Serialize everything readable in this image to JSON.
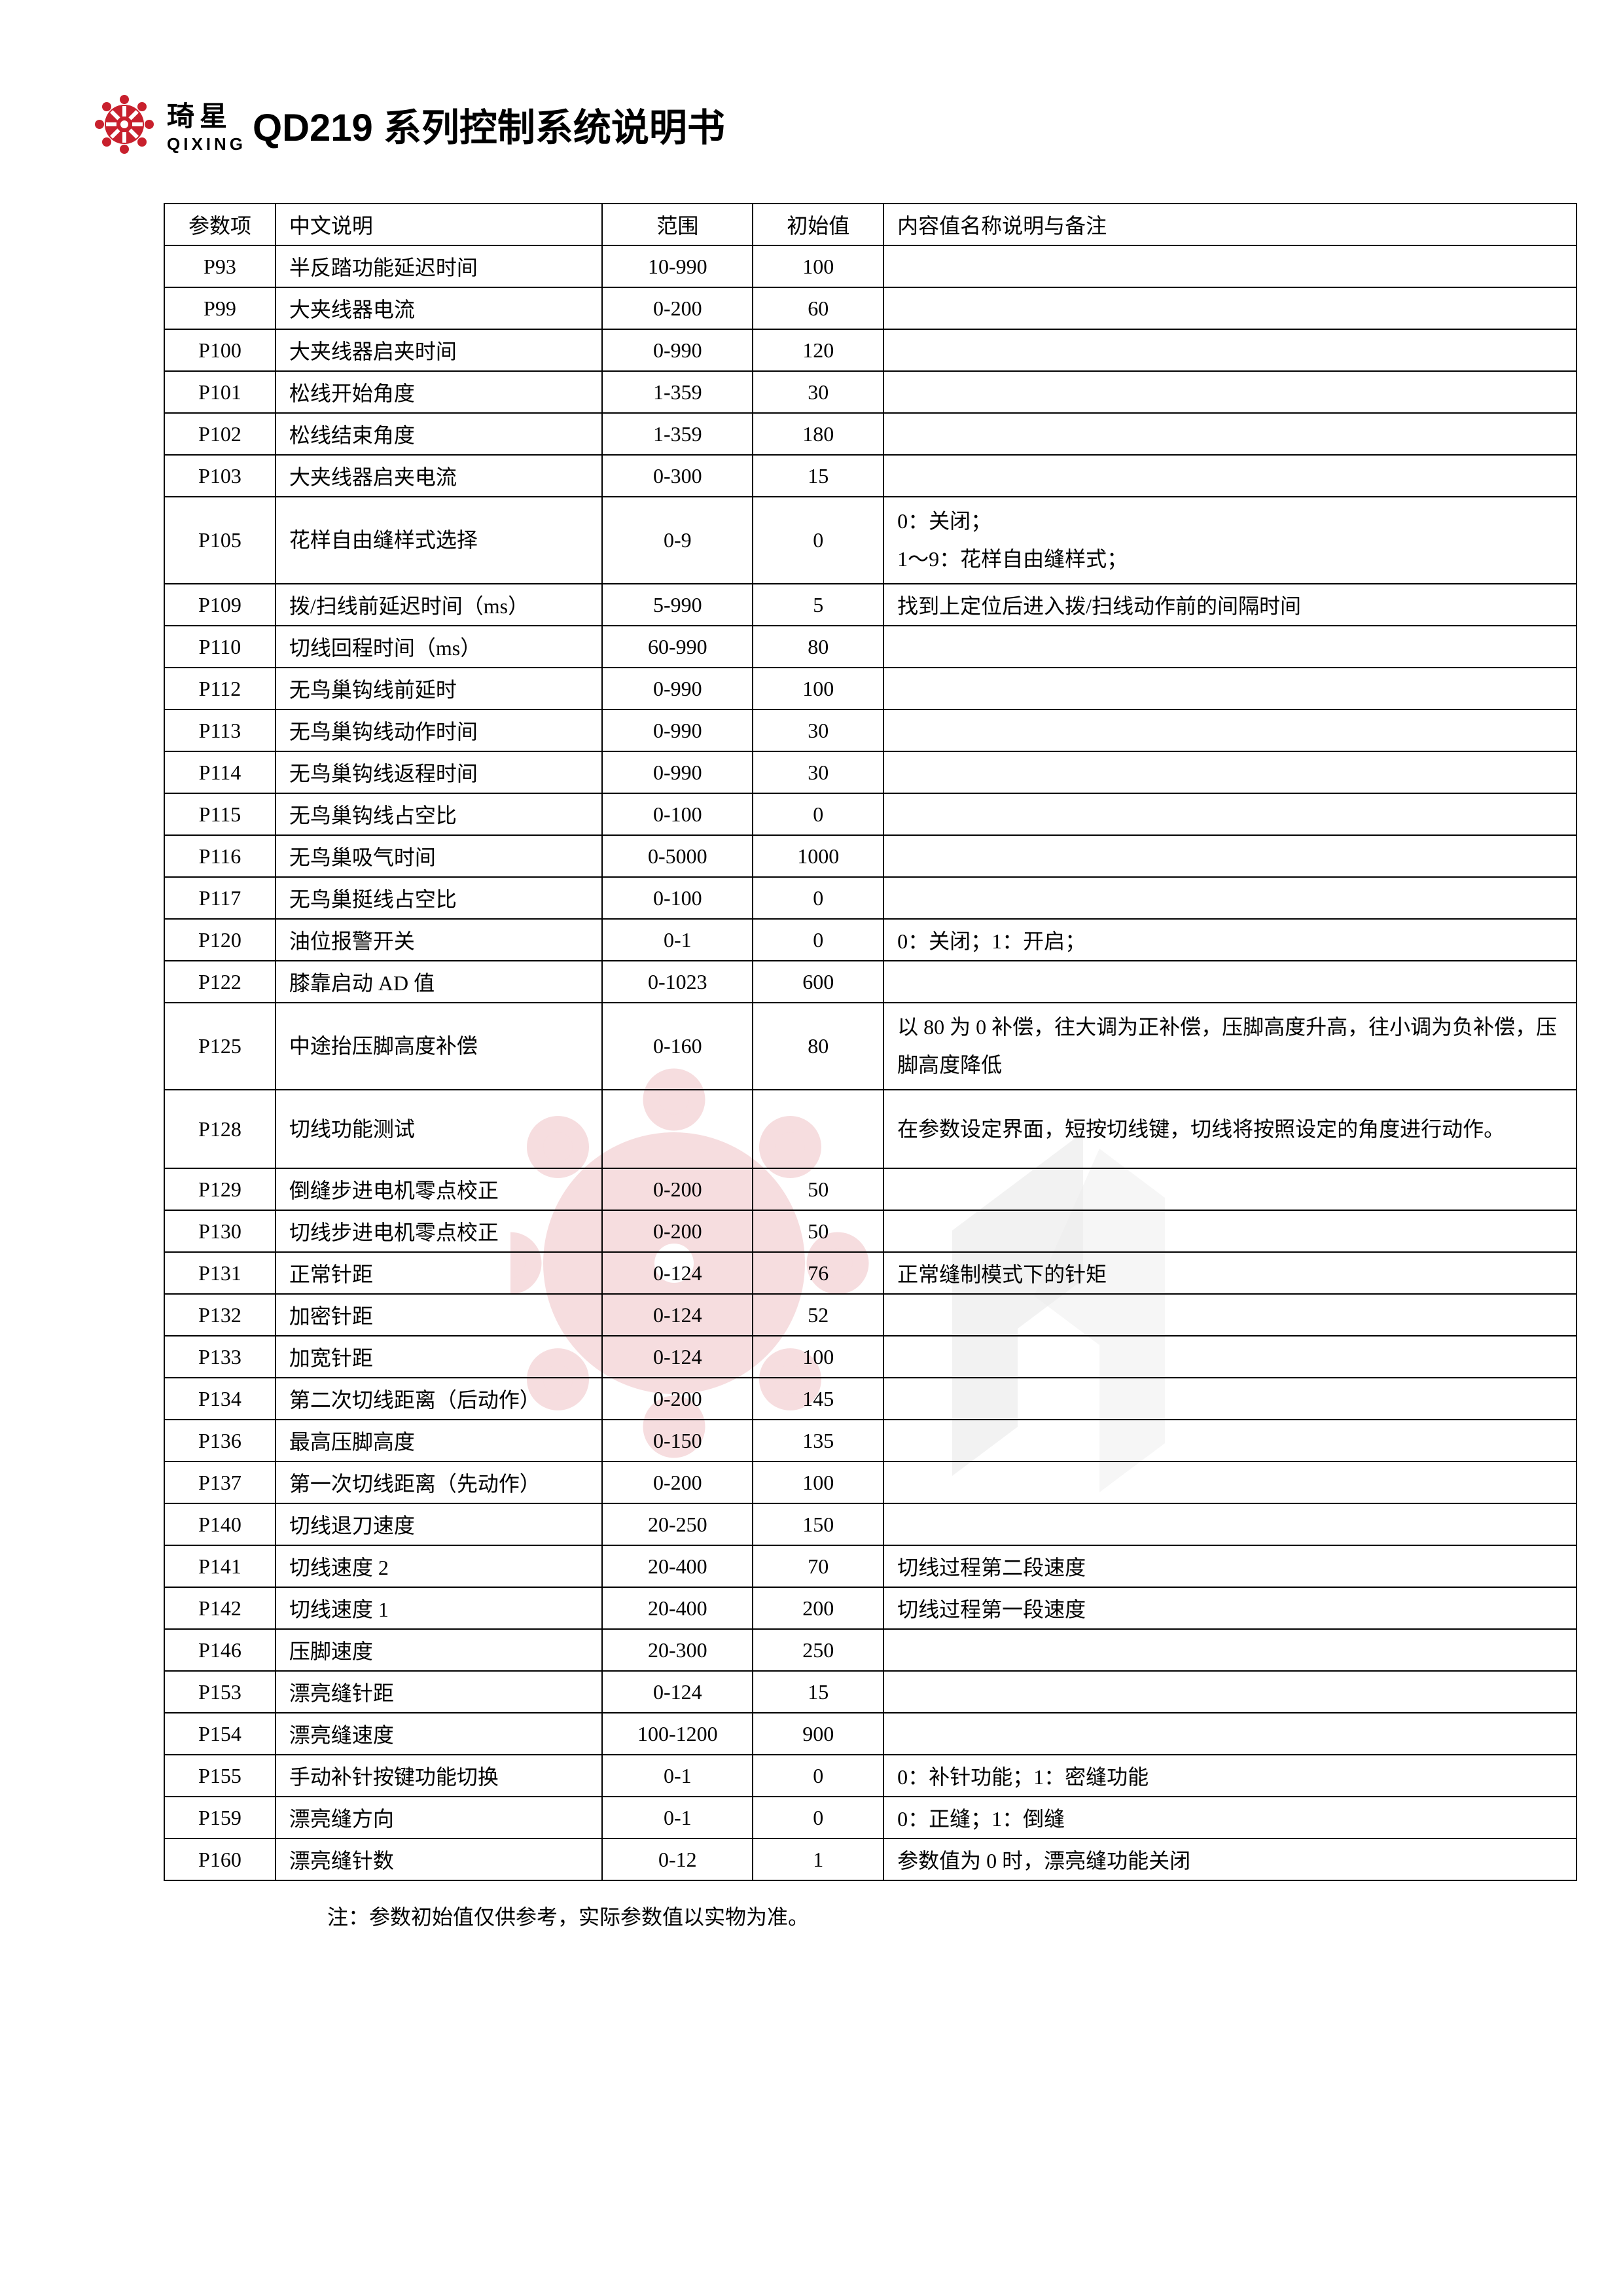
{
  "header": {
    "brand_cn": "琦星",
    "brand_en": "QIXING",
    "title": "QD219 系列控制系统说明书",
    "logo_color": "#c8202d"
  },
  "table": {
    "headers": {
      "param": "参数项",
      "desc": "中文说明",
      "range": "范围",
      "init": "初始值",
      "note": "内容值名称说明与备注"
    },
    "rows": [
      {
        "param": "P93",
        "desc": "半反踏功能延迟时间",
        "range": "10-990",
        "init": "100",
        "note": ""
      },
      {
        "param": "P99",
        "desc": "大夹线器电流",
        "range": "0-200",
        "init": "60",
        "note": ""
      },
      {
        "param": "P100",
        "desc": "大夹线器启夹时间",
        "range": "0-990",
        "init": "120",
        "note": ""
      },
      {
        "param": "P101",
        "desc": "松线开始角度",
        "range": "1-359",
        "init": "30",
        "note": ""
      },
      {
        "param": "P102",
        "desc": "松线结束角度",
        "range": "1-359",
        "init": "180",
        "note": ""
      },
      {
        "param": "P103",
        "desc": "大夹线器启夹电流",
        "range": "0-300",
        "init": "15",
        "note": ""
      },
      {
        "param": "P105",
        "desc": "花样自由缝样式选择",
        "range": "0-9",
        "init": "0",
        "note": "0：关闭；\n1～9：花样自由缝样式；",
        "tall": true
      },
      {
        "param": "P109",
        "desc": "拨/扫线前延迟时间（ms）",
        "range": "5-990",
        "init": "5",
        "note": "找到上定位后进入拨/扫线动作前的间隔时间"
      },
      {
        "param": "P110",
        "desc": "切线回程时间（ms）",
        "range": "60-990",
        "init": "80",
        "note": ""
      },
      {
        "param": "P112",
        "desc": "无鸟巢钩线前延时",
        "range": "0-990",
        "init": "100",
        "note": ""
      },
      {
        "param": "P113",
        "desc": "无鸟巢钩线动作时间",
        "range": "0-990",
        "init": "30",
        "note": ""
      },
      {
        "param": "P114",
        "desc": "无鸟巢钩线返程时间",
        "range": "0-990",
        "init": "30",
        "note": ""
      },
      {
        "param": "P115",
        "desc": "无鸟巢钩线占空比",
        "range": "0-100",
        "init": "0",
        "note": ""
      },
      {
        "param": "P116",
        "desc": "无鸟巢吸气时间",
        "range": "0-5000",
        "init": "1000",
        "note": ""
      },
      {
        "param": "P117",
        "desc": "无鸟巢挺线占空比",
        "range": "0-100",
        "init": "0",
        "note": ""
      },
      {
        "param": "P120",
        "desc": "油位报警开关",
        "range": "0-1",
        "init": "0",
        "note": "0：关闭；1：开启；"
      },
      {
        "param": "P122",
        "desc": "膝靠启动 AD 值",
        "range": "0-1023",
        "init": "600",
        "note": ""
      },
      {
        "param": "P125",
        "desc": "中途抬压脚高度补偿",
        "range": "0-160",
        "init": "80",
        "note": "以 80 为 0 补偿，往大调为正补偿，压脚高度升高，往小调为负补偿，压脚高度降低",
        "tall": true
      },
      {
        "param": "P128",
        "desc": "切线功能测试",
        "range": "",
        "init": "",
        "note": "在参数设定界面，短按切线键，切线将按照设定的角度进行动作。",
        "tall": true
      },
      {
        "param": "P129",
        "desc": "倒缝步进电机零点校正",
        "range": "0-200",
        "init": "50",
        "note": ""
      },
      {
        "param": "P130",
        "desc": "切线步进电机零点校正",
        "range": "0-200",
        "init": "50",
        "note": ""
      },
      {
        "param": "P131",
        "desc": "正常针距",
        "range": "0-124",
        "init": "76",
        "note": "正常缝制模式下的针矩"
      },
      {
        "param": "P132",
        "desc": "加密针距",
        "range": "0-124",
        "init": "52",
        "note": ""
      },
      {
        "param": "P133",
        "desc": "加宽针距",
        "range": "0-124",
        "init": "100",
        "note": ""
      },
      {
        "param": "P134",
        "desc": "第二次切线距离（后动作）",
        "range": "0-200",
        "init": "145",
        "note": ""
      },
      {
        "param": "P136",
        "desc": "最高压脚高度",
        "range": "0-150",
        "init": "135",
        "note": ""
      },
      {
        "param": "P137",
        "desc": "第一次切线距离（先动作）",
        "range": "0-200",
        "init": "100",
        "note": ""
      },
      {
        "param": "P140",
        "desc": "切线退刀速度",
        "range": "20-250",
        "init": "150",
        "note": ""
      },
      {
        "param": "P141",
        "desc": "切线速度 2",
        "range": "20-400",
        "init": "70",
        "note": "切线过程第二段速度"
      },
      {
        "param": "P142",
        "desc": "切线速度 1",
        "range": "20-400",
        "init": "200",
        "note": "切线过程第一段速度"
      },
      {
        "param": "P146",
        "desc": "压脚速度",
        "range": "20-300",
        "init": "250",
        "note": ""
      },
      {
        "param": "P153",
        "desc": "漂亮缝针距",
        "range": "0-124",
        "init": "15",
        "note": ""
      },
      {
        "param": "P154",
        "desc": "漂亮缝速度",
        "range": "100-1200",
        "init": "900",
        "note": ""
      },
      {
        "param": "P155",
        "desc": "手动补针按键功能切换",
        "range": "0-1",
        "init": "0",
        "note": "0：补针功能；1：密缝功能"
      },
      {
        "param": "P159",
        "desc": "漂亮缝方向",
        "range": "0-1",
        "init": "0",
        "note": "0：正缝；1：倒缝"
      },
      {
        "param": "P160",
        "desc": "漂亮缝针数",
        "range": "0-12",
        "init": "1",
        "note": "参数值为 0 时，漂亮缝功能关闭"
      }
    ]
  },
  "footnote": "注：参数初始值仅供参考，实际参数值以实物为准。",
  "colors": {
    "text": "#000000",
    "background": "#ffffff",
    "border": "#000000",
    "watermark_red": "#c8202d",
    "watermark_gray": "#888888"
  }
}
